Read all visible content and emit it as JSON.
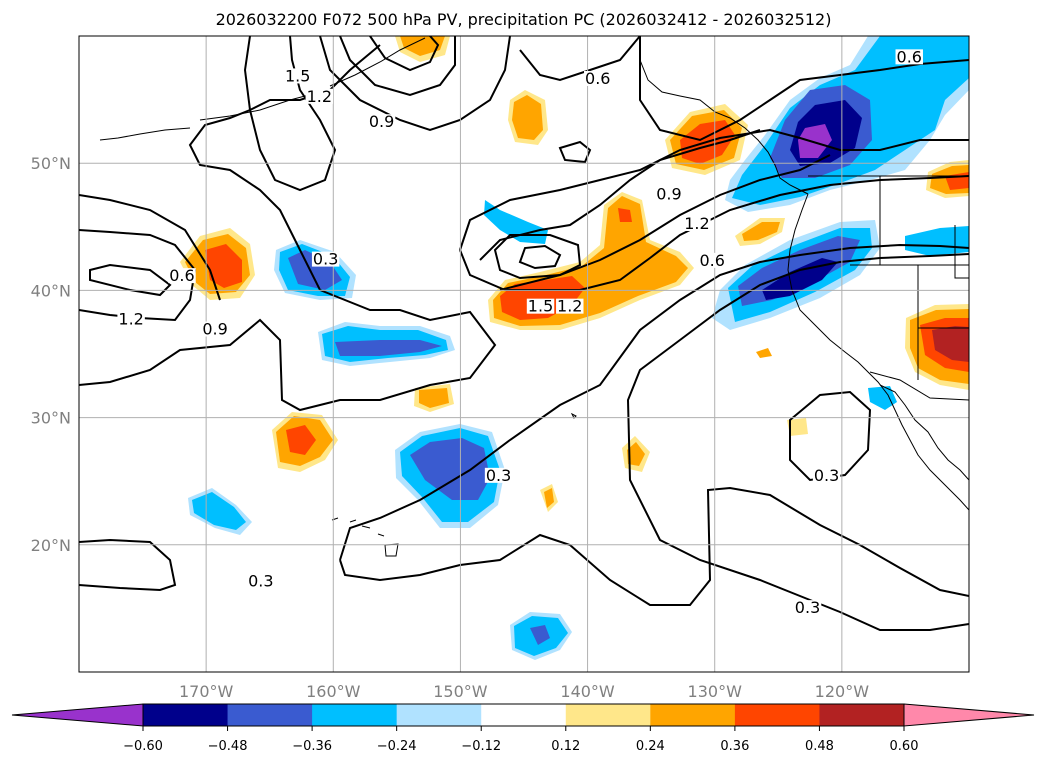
{
  "title": "2026032200 F072 500 hPa PV, precipitation PC (2026032412 - 2026032512)",
  "axes": {
    "lon_range": [
      -180,
      -110
    ],
    "lat_range": [
      10,
      60
    ],
    "lon_ticks": [
      {
        "lon": -170,
        "label": "170°W"
      },
      {
        "lon": -160,
        "label": "160°W"
      },
      {
        "lon": -150,
        "label": "150°W"
      },
      {
        "lon": -140,
        "label": "140°W"
      },
      {
        "lon": -130,
        "label": "130°W"
      },
      {
        "lon": -120,
        "label": "120°W"
      }
    ],
    "lat_ticks": [
      {
        "lat": 50,
        "label": "50°N"
      },
      {
        "lat": 40,
        "label": "40°N"
      },
      {
        "lat": 30,
        "label": "30°N"
      },
      {
        "lat": 20,
        "label": "20°N"
      }
    ],
    "grid": true
  },
  "colorbar": {
    "ticks": [
      "−0.60",
      "−0.48",
      "−0.36",
      "−0.24",
      "−0.12",
      "0.12",
      "0.24",
      "0.36",
      "0.48",
      "0.60"
    ],
    "colors": [
      "#9932cc",
      "#00008b",
      "#3a5bd0",
      "#00bfff",
      "#b0e2ff",
      "#ffffff",
      "#ffe78a",
      "#ffa500",
      "#ff4500",
      "#b22222",
      "#ff88aa"
    ],
    "extend": "both"
  },
  "contour_labels": [
    {
      "text": "0.6",
      "lon": -139.2,
      "lat": 56.7
    },
    {
      "text": "0.6",
      "lon": -114.7,
      "lat": 58.4
    },
    {
      "text": "1.5",
      "lon": -162.8,
      "lat": 56.9
    },
    {
      "text": "1.2",
      "lon": -161.1,
      "lat": 55.3
    },
    {
      "text": "0.9",
      "lon": -156.2,
      "lat": 53.3
    },
    {
      "text": "0.9",
      "lon": -133.6,
      "lat": 47.6
    },
    {
      "text": "1.2",
      "lon": -131.4,
      "lat": 45.3
    },
    {
      "text": "0.6",
      "lon": -130.2,
      "lat": 42.4
    },
    {
      "text": "0.3",
      "lon": -160.6,
      "lat": 42.5
    },
    {
      "text": "0.6",
      "lon": -171.9,
      "lat": 41.2
    },
    {
      "text": "1.2",
      "lon": -175.9,
      "lat": 37.8
    },
    {
      "text": "0.9",
      "lon": -169.3,
      "lat": 37.0
    },
    {
      "text": "1.5",
      "lon": -143.7,
      "lat": 38.8
    },
    {
      "text": "1.2",
      "lon": -141.4,
      "lat": 38.8
    },
    {
      "text": "0.3",
      "lon": -147.0,
      "lat": 25.5
    },
    {
      "text": "0.3",
      "lon": -121.2,
      "lat": 25.5
    },
    {
      "text": "0.3",
      "lon": -165.7,
      "lat": 17.2
    },
    {
      "text": "0.3",
      "lon": -122.7,
      "lat": 15.1
    }
  ]
}
